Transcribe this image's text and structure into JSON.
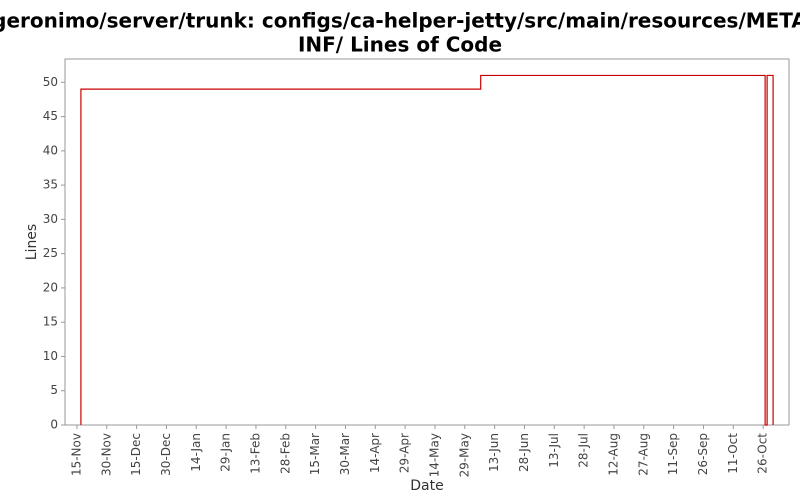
{
  "chart_data": {
    "type": "line",
    "title": [
      "/geronimo/server/trunk: configs/ca-helper-jetty/src/main/resources/META-",
      "INF/ Lines of Code"
    ],
    "x_label": "Date",
    "y_label": "Lines",
    "x": [
      2,
      2,
      203,
      203,
      346,
      346,
      347,
      347,
      350,
      350
    ],
    "series": [
      {
        "name": "Lines",
        "color": "#cc0000",
        "values": [
          0,
          49,
          49,
          51,
          51,
          0,
          0,
          51,
          51,
          0
        ]
      }
    ],
    "xlim": [
      -6,
      358
    ],
    "xticks": [
      {
        "value": 0,
        "label": "15-Nov"
      },
      {
        "value": 15,
        "label": "30-Nov"
      },
      {
        "value": 30,
        "label": "15-Dec"
      },
      {
        "value": 45,
        "label": "30-Dec"
      },
      {
        "value": 60,
        "label": "14-Jan"
      },
      {
        "value": 75,
        "label": "29-Jan"
      },
      {
        "value": 90,
        "label": "13-Feb"
      },
      {
        "value": 105,
        "label": "28-Feb"
      },
      {
        "value": 120,
        "label": "15-Mar"
      },
      {
        "value": 135,
        "label": "30-Mar"
      },
      {
        "value": 150,
        "label": "14-Apr"
      },
      {
        "value": 165,
        "label": "29-Apr"
      },
      {
        "value": 180,
        "label": "14-May"
      },
      {
        "value": 195,
        "label": "29-May"
      },
      {
        "value": 210,
        "label": "13-Jun"
      },
      {
        "value": 225,
        "label": "28-Jun"
      },
      {
        "value": 240,
        "label": "13-Jul"
      },
      {
        "value": 255,
        "label": "28-Jul"
      },
      {
        "value": 270,
        "label": "12-Aug"
      },
      {
        "value": 285,
        "label": "27-Aug"
      },
      {
        "value": 300,
        "label": "11-Sep"
      },
      {
        "value": 315,
        "label": "26-Sep"
      },
      {
        "value": 330,
        "label": "11-Oct"
      },
      {
        "value": 345,
        "label": "26-Oct"
      }
    ],
    "ylim": [
      0,
      53.4
    ],
    "yticks": [
      0,
      5,
      10,
      15,
      20,
      25,
      30,
      35,
      40,
      45,
      50
    ],
    "grid": false
  }
}
